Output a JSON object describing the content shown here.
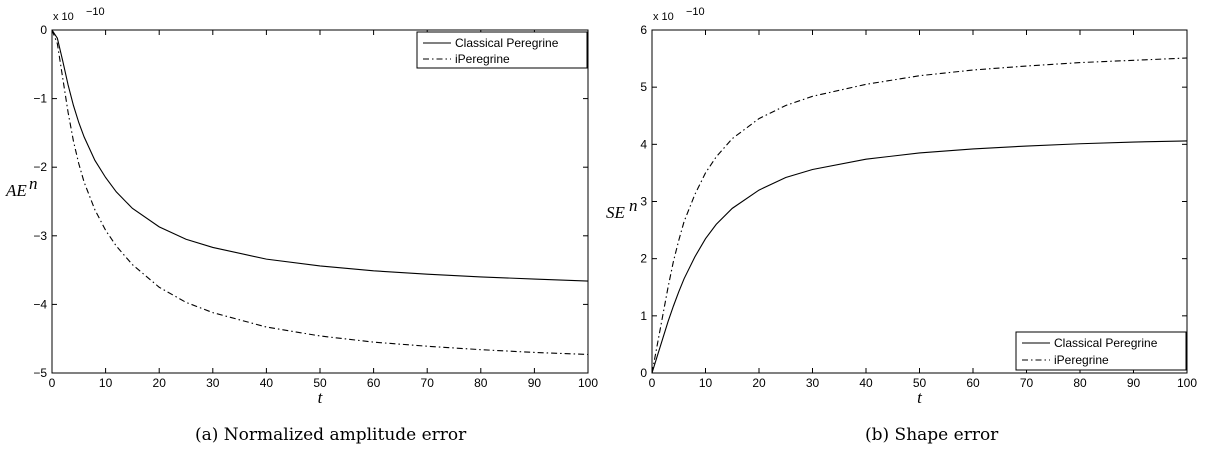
{
  "chart_data": [
    {
      "type": "line",
      "caption": "(a)  Normalized amplitude error",
      "xlabel": "t",
      "ylabel": "AE",
      "ylabel_sup": "n",
      "exponent_label": "x 10",
      "exponent_power": "−10",
      "xlim": [
        0,
        100
      ],
      "ylim": [
        -5,
        0
      ],
      "xticks": [
        0,
        10,
        20,
        30,
        40,
        50,
        60,
        70,
        80,
        90,
        100
      ],
      "yticks": [
        0,
        -1,
        -2,
        -3,
        -4,
        -5
      ],
      "ytick_labels": [
        "0",
        "−1",
        "−2",
        "−3",
        "−4",
        "−5"
      ],
      "legend_position": "top-right",
      "x": [
        0,
        1,
        2,
        3,
        4,
        5,
        6,
        8,
        10,
        12,
        15,
        20,
        25,
        30,
        40,
        50,
        60,
        70,
        80,
        90,
        100
      ],
      "series": [
        {
          "name": "Classical Peregrine",
          "style": "solid",
          "values": [
            0,
            -0.12,
            -0.45,
            -0.8,
            -1.1,
            -1.35,
            -1.56,
            -1.9,
            -2.15,
            -2.36,
            -2.6,
            -2.87,
            -3.05,
            -3.17,
            -3.34,
            -3.44,
            -3.51,
            -3.56,
            -3.6,
            -3.63,
            -3.66
          ]
        },
        {
          "name": "iPeregrine",
          "style": "dashdot",
          "values": [
            0,
            -0.2,
            -0.7,
            -1.2,
            -1.62,
            -1.95,
            -2.22,
            -2.62,
            -2.92,
            -3.15,
            -3.42,
            -3.75,
            -3.97,
            -4.12,
            -4.33,
            -4.46,
            -4.55,
            -4.61,
            -4.66,
            -4.7,
            -4.73
          ]
        }
      ]
    },
    {
      "type": "line",
      "caption": "(b)  Shape error",
      "xlabel": "t",
      "ylabel": "SE",
      "ylabel_sup": "n",
      "exponent_label": "x 10",
      "exponent_power": "−10",
      "xlim": [
        0,
        100
      ],
      "ylim": [
        0,
        6
      ],
      "xticks": [
        0,
        10,
        20,
        30,
        40,
        50,
        60,
        70,
        80,
        90,
        100
      ],
      "yticks": [
        0,
        1,
        2,
        3,
        4,
        5,
        6
      ],
      "ytick_labels": [
        "0",
        "1",
        "2",
        "3",
        "4",
        "5",
        "6"
      ],
      "legend_position": "bottom-right",
      "x": [
        0,
        1,
        2,
        3,
        4,
        5,
        6,
        8,
        10,
        12,
        15,
        20,
        25,
        30,
        40,
        50,
        60,
        70,
        80,
        90,
        100
      ],
      "series": [
        {
          "name": "Classical Peregrine",
          "style": "solid",
          "values": [
            0,
            0.3,
            0.6,
            0.9,
            1.17,
            1.42,
            1.65,
            2.03,
            2.35,
            2.6,
            2.88,
            3.2,
            3.42,
            3.56,
            3.74,
            3.85,
            3.92,
            3.97,
            4.01,
            4.04,
            4.06
          ]
        },
        {
          "name": "iPeregrine",
          "style": "dashdot",
          "values": [
            0,
            0.5,
            1.0,
            1.5,
            1.95,
            2.32,
            2.65,
            3.12,
            3.5,
            3.78,
            4.1,
            4.45,
            4.68,
            4.84,
            5.05,
            5.2,
            5.3,
            5.37,
            5.43,
            5.47,
            5.51
          ]
        }
      ]
    }
  ]
}
